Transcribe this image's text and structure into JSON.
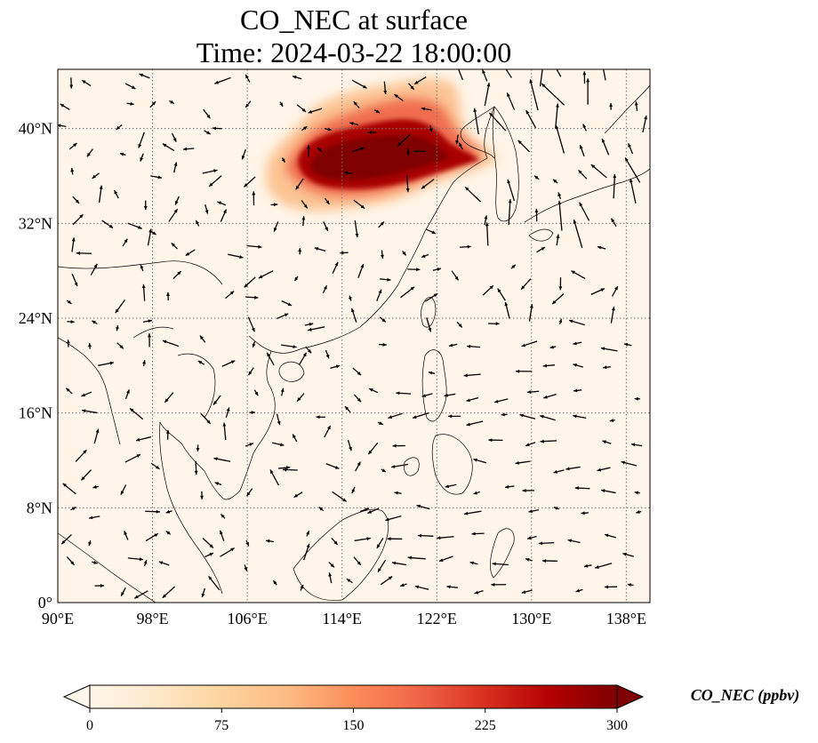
{
  "title": "CO_NEC at surface",
  "subtitle": "Time: 2024-03-22 18:00:00",
  "map": {
    "lon_range": [
      90,
      140
    ],
    "lat_range": [
      0,
      45
    ],
    "lon_ticks": [
      "90°E",
      "98°E",
      "106°E",
      "114°E",
      "122°E",
      "130°E",
      "138°E"
    ],
    "lat_ticks": [
      "0°",
      "8°N",
      "16°N",
      "24°N",
      "32°N",
      "40°N"
    ],
    "gridlines": true,
    "gridline_style": "dotted"
  },
  "colorbar": {
    "label": "CO_NEC (ppbv)",
    "colormap": "OrRd",
    "range": [
      0,
      300
    ],
    "ticks": [
      "0",
      "75",
      "150",
      "225",
      "300"
    ],
    "extend": "both",
    "colors": [
      "#fff7ec",
      "#fee8c8",
      "#fdd49e",
      "#fdbb84",
      "#fc8d59",
      "#ef6548",
      "#d7301f",
      "#b30000",
      "#7f0000"
    ]
  },
  "field": {
    "background_color": "#fff5e8",
    "plume_peak_color": "#7f0000",
    "plume_region": "North China Plain / Bohai"
  }
}
